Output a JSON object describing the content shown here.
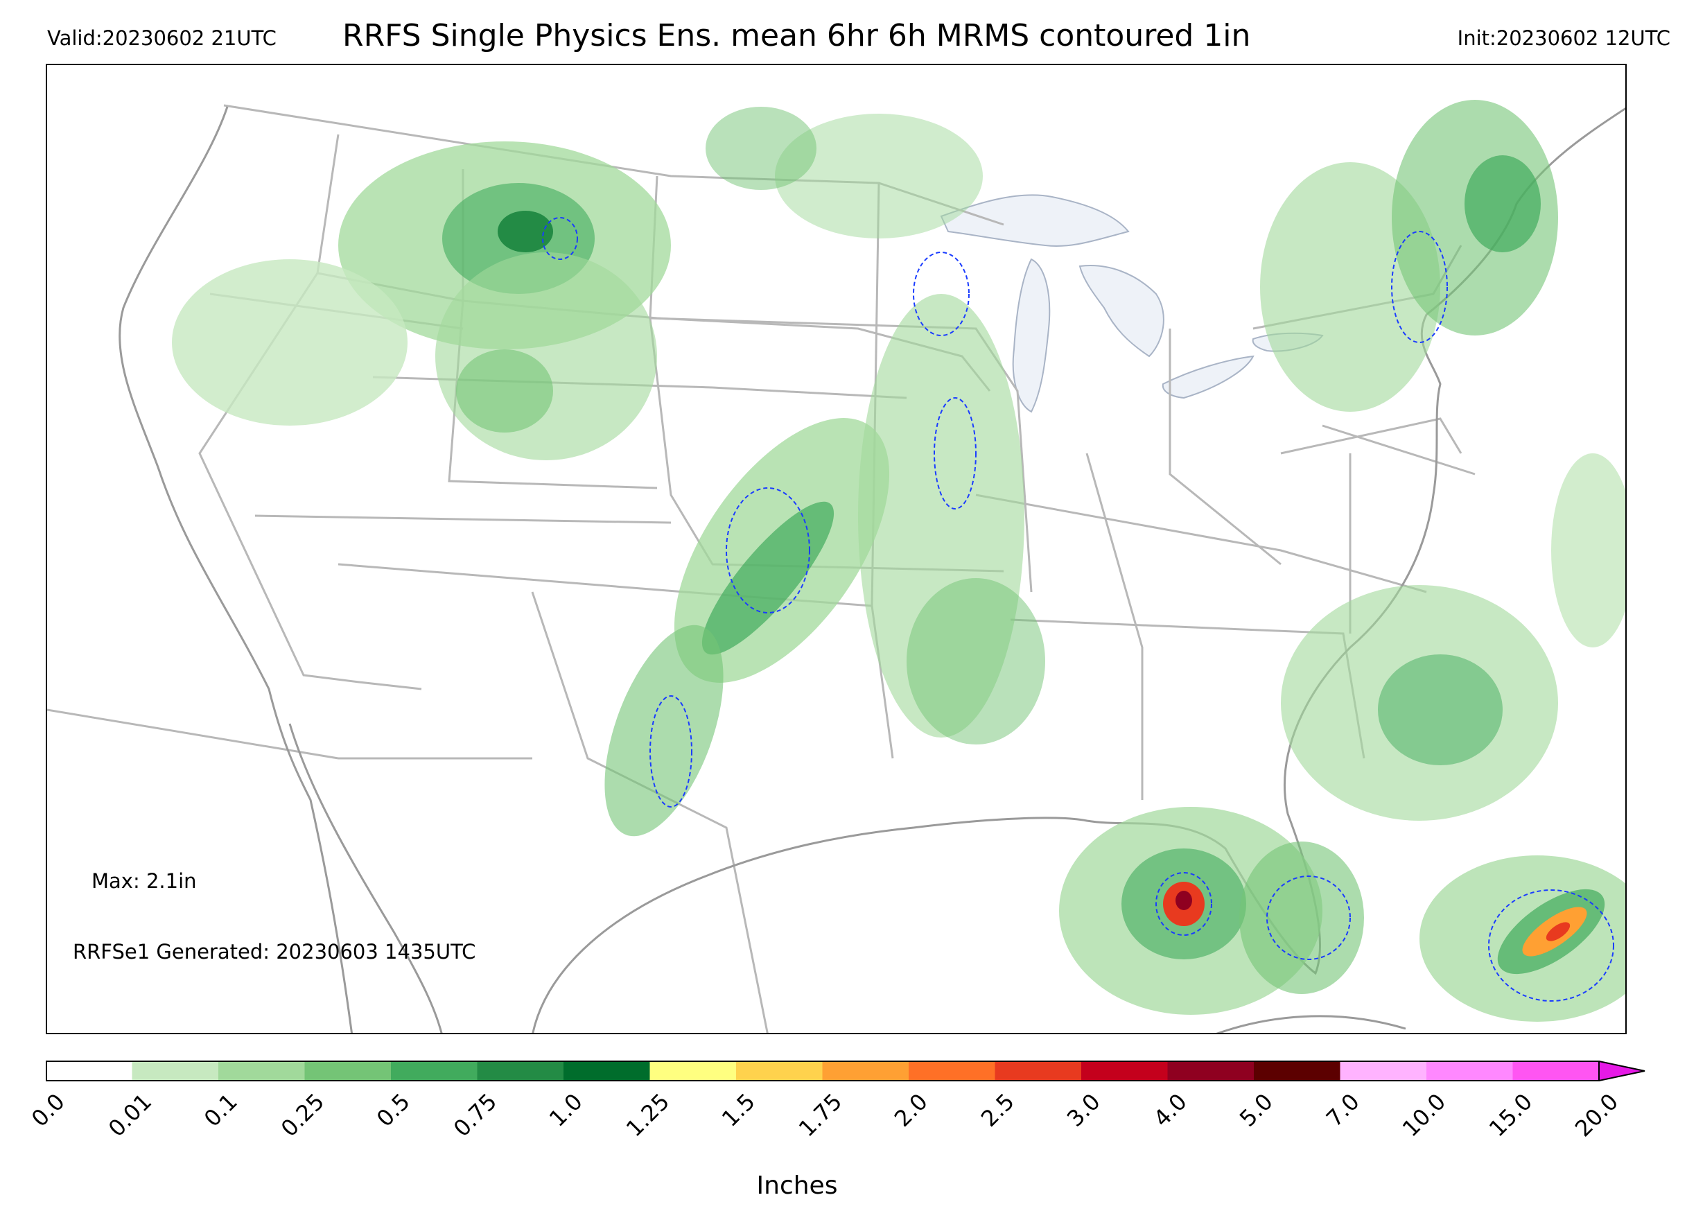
{
  "header": {
    "valid": "Valid:20230602 21UTC",
    "title": "RRFS Single Physics Ens. mean 6hr 6h MRMS contoured 1in",
    "init": "Init:20230602 12UTC"
  },
  "map": {
    "max_label": "Max: 2.1in",
    "generated_label": "RRFSe1 Generated: 20230603 1435UTC",
    "lake_color": "#eef2f8",
    "border_color": "#b8b8b8",
    "coast_color": "#9a9a9a",
    "contour_color": "#1a3cff"
  },
  "colorbar": {
    "ticks": [
      "0.0",
      "0.01",
      "0.1",
      "0.25",
      "0.5",
      "0.75",
      "1.0",
      "1.25",
      "1.5",
      "1.75",
      "2.0",
      "2.5",
      "3.0",
      "4.0",
      "5.0",
      "7.0",
      "10.0",
      "15.0",
      "20.0"
    ],
    "colors": [
      "#ffffff",
      "#c7e9c0",
      "#a1d99b",
      "#74c476",
      "#41ab5d",
      "#238b45",
      "#006d2c",
      "#ffff80",
      "#ffd24d",
      "#ffa033",
      "#ff7026",
      "#e83a1f",
      "#c4001c",
      "#8f0020",
      "#5c0000",
      "#ffb3ff",
      "#ff88ff",
      "#ff55f2",
      "#e61ae6",
      "#b300cc",
      "#7a00b3"
    ],
    "units_label": "Inches"
  }
}
